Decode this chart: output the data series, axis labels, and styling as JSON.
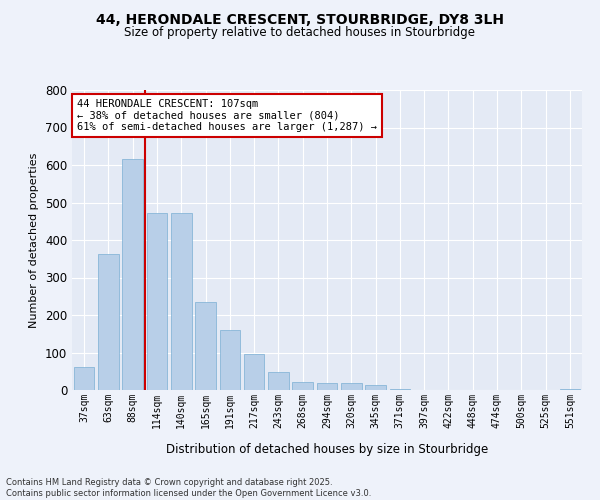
{
  "title_line1": "44, HERONDALE CRESCENT, STOURBRIDGE, DY8 3LH",
  "title_line2": "Size of property relative to detached houses in Stourbridge",
  "xlabel": "Distribution of detached houses by size in Stourbridge",
  "ylabel": "Number of detached properties",
  "categories": [
    "37sqm",
    "63sqm",
    "88sqm",
    "114sqm",
    "140sqm",
    "165sqm",
    "191sqm",
    "217sqm",
    "243sqm",
    "268sqm",
    "294sqm",
    "320sqm",
    "345sqm",
    "371sqm",
    "397sqm",
    "422sqm",
    "448sqm",
    "474sqm",
    "500sqm",
    "525sqm",
    "551sqm"
  ],
  "values": [
    62,
    362,
    617,
    472,
    472,
    236,
    160,
    97,
    48,
    22,
    19,
    19,
    13,
    3,
    1,
    1,
    1,
    1,
    1,
    1,
    2
  ],
  "bar_color": "#b8cfe8",
  "bar_edge_color": "#7aafd4",
  "vline_x_index": 3,
  "vline_color": "#cc0000",
  "ylim": [
    0,
    800
  ],
  "yticks": [
    0,
    100,
    200,
    300,
    400,
    500,
    600,
    700,
    800
  ],
  "annotation_title": "44 HERONDALE CRESCENT: 107sqm",
  "annotation_line2": "← 38% of detached houses are smaller (804)",
  "annotation_line3": "61% of semi-detached houses are larger (1,287) →",
  "annotation_box_color": "#cc0000",
  "footer_line1": "Contains HM Land Registry data © Crown copyright and database right 2025.",
  "footer_line2": "Contains public sector information licensed under the Open Government Licence v3.0.",
  "bg_color": "#eef2fa",
  "plot_bg_color": "#e4eaf5"
}
